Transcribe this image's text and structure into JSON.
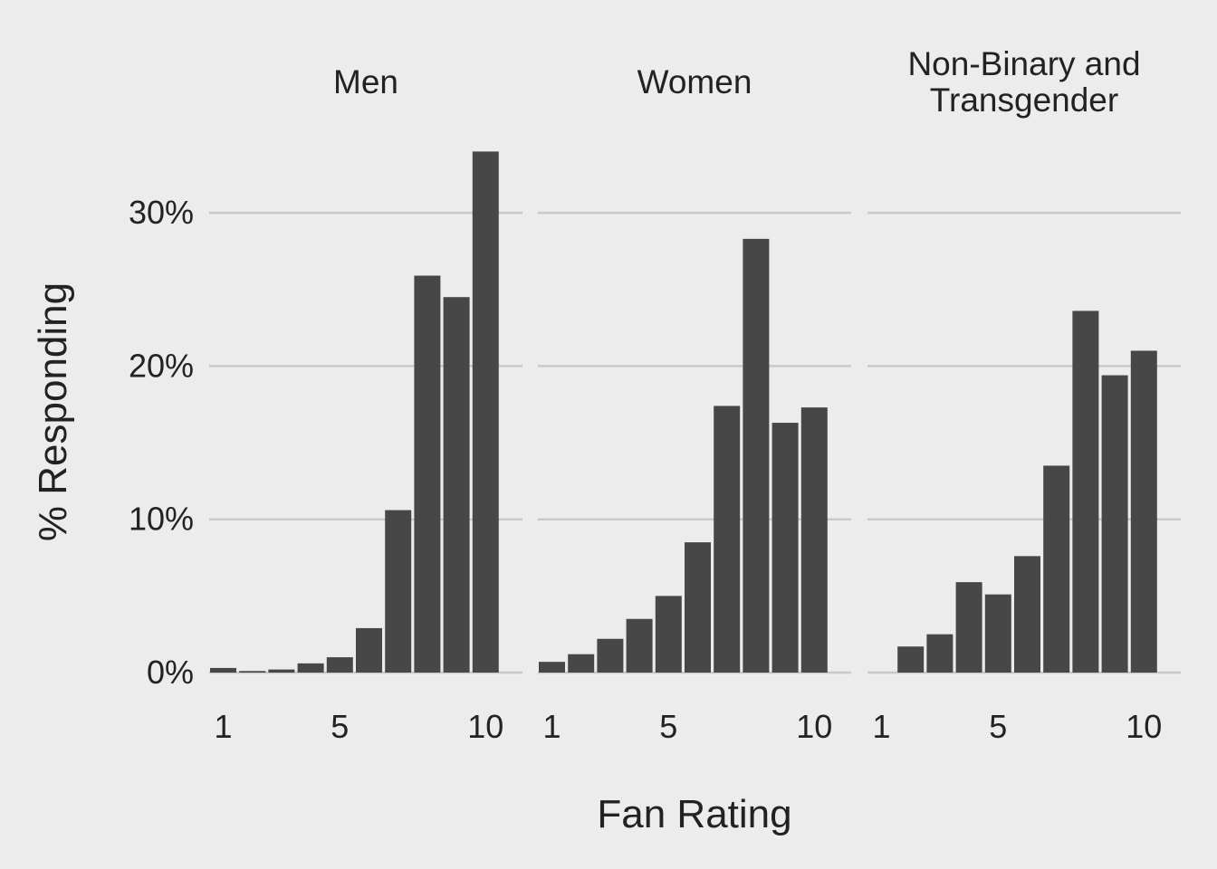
{
  "chart_data": {
    "type": "bar",
    "xlabel": "Fan Rating",
    "ylabel": "% Responding",
    "ylim": [
      0,
      35
    ],
    "yticks": [
      0,
      10,
      20,
      30
    ],
    "ytick_labels": [
      "0%",
      "10%",
      "20%",
      "30%"
    ],
    "categories": [
      1,
      2,
      3,
      4,
      5,
      6,
      7,
      8,
      9,
      10
    ],
    "xtick_labels": [
      "1",
      "5",
      "10"
    ],
    "xtick_values": [
      1,
      5,
      10
    ],
    "grid": "horizontal",
    "colors": {
      "bar": "#474747",
      "grid": "#c9c9c9",
      "background": "#ececec",
      "text": "#222222"
    },
    "facets": [
      {
        "title_lines": [
          "Men"
        ],
        "values": [
          0.3,
          0.1,
          0.2,
          0.6,
          1.0,
          2.9,
          10.6,
          25.9,
          24.5,
          34.0
        ]
      },
      {
        "title_lines": [
          "Women"
        ],
        "values": [
          0.7,
          1.2,
          2.2,
          3.5,
          5.0,
          8.5,
          17.4,
          28.3,
          16.3,
          17.3
        ]
      },
      {
        "title_lines": [
          "Non-Binary and",
          "Transgender"
        ],
        "values": [
          0.0,
          1.7,
          2.5,
          5.9,
          5.1,
          7.6,
          13.5,
          23.6,
          19.4,
          21.0
        ]
      }
    ]
  }
}
